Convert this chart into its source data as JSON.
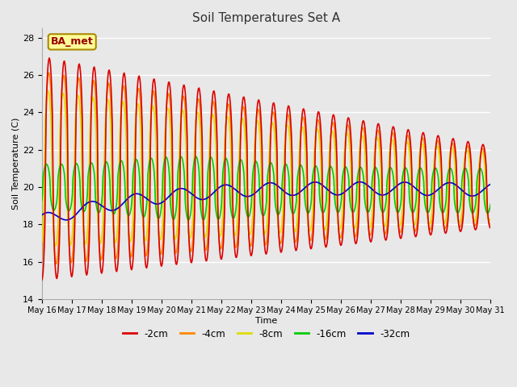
{
  "title": "Soil Temperatures Set A",
  "xlabel": "Time",
  "ylabel": "Soil Temperature (C)",
  "ylim": [
    14,
    28.5
  ],
  "annotation": "BA_met",
  "legend_labels": [
    "-2cm",
    "-4cm",
    "-8cm",
    "-16cm",
    "-32cm"
  ],
  "legend_colors": [
    "#dd0000",
    "#ff8800",
    "#dddd00",
    "#00cc00",
    "#0000cc"
  ],
  "background_color": "#e8e8e8",
  "plot_bg_color": "#e8e8e8",
  "grid_color": "#ffffff",
  "tick_dates": [
    "May 16",
    "May 17",
    "May 18",
    "May 19",
    "May 20",
    "May 21",
    "May 22",
    "May 23",
    "May 24",
    "May 25",
    "May 26",
    "May 27",
    "May 28",
    "May 29",
    "May 30",
    "May 31"
  ],
  "yticks": [
    14,
    16,
    18,
    20,
    22,
    24,
    26,
    28
  ]
}
